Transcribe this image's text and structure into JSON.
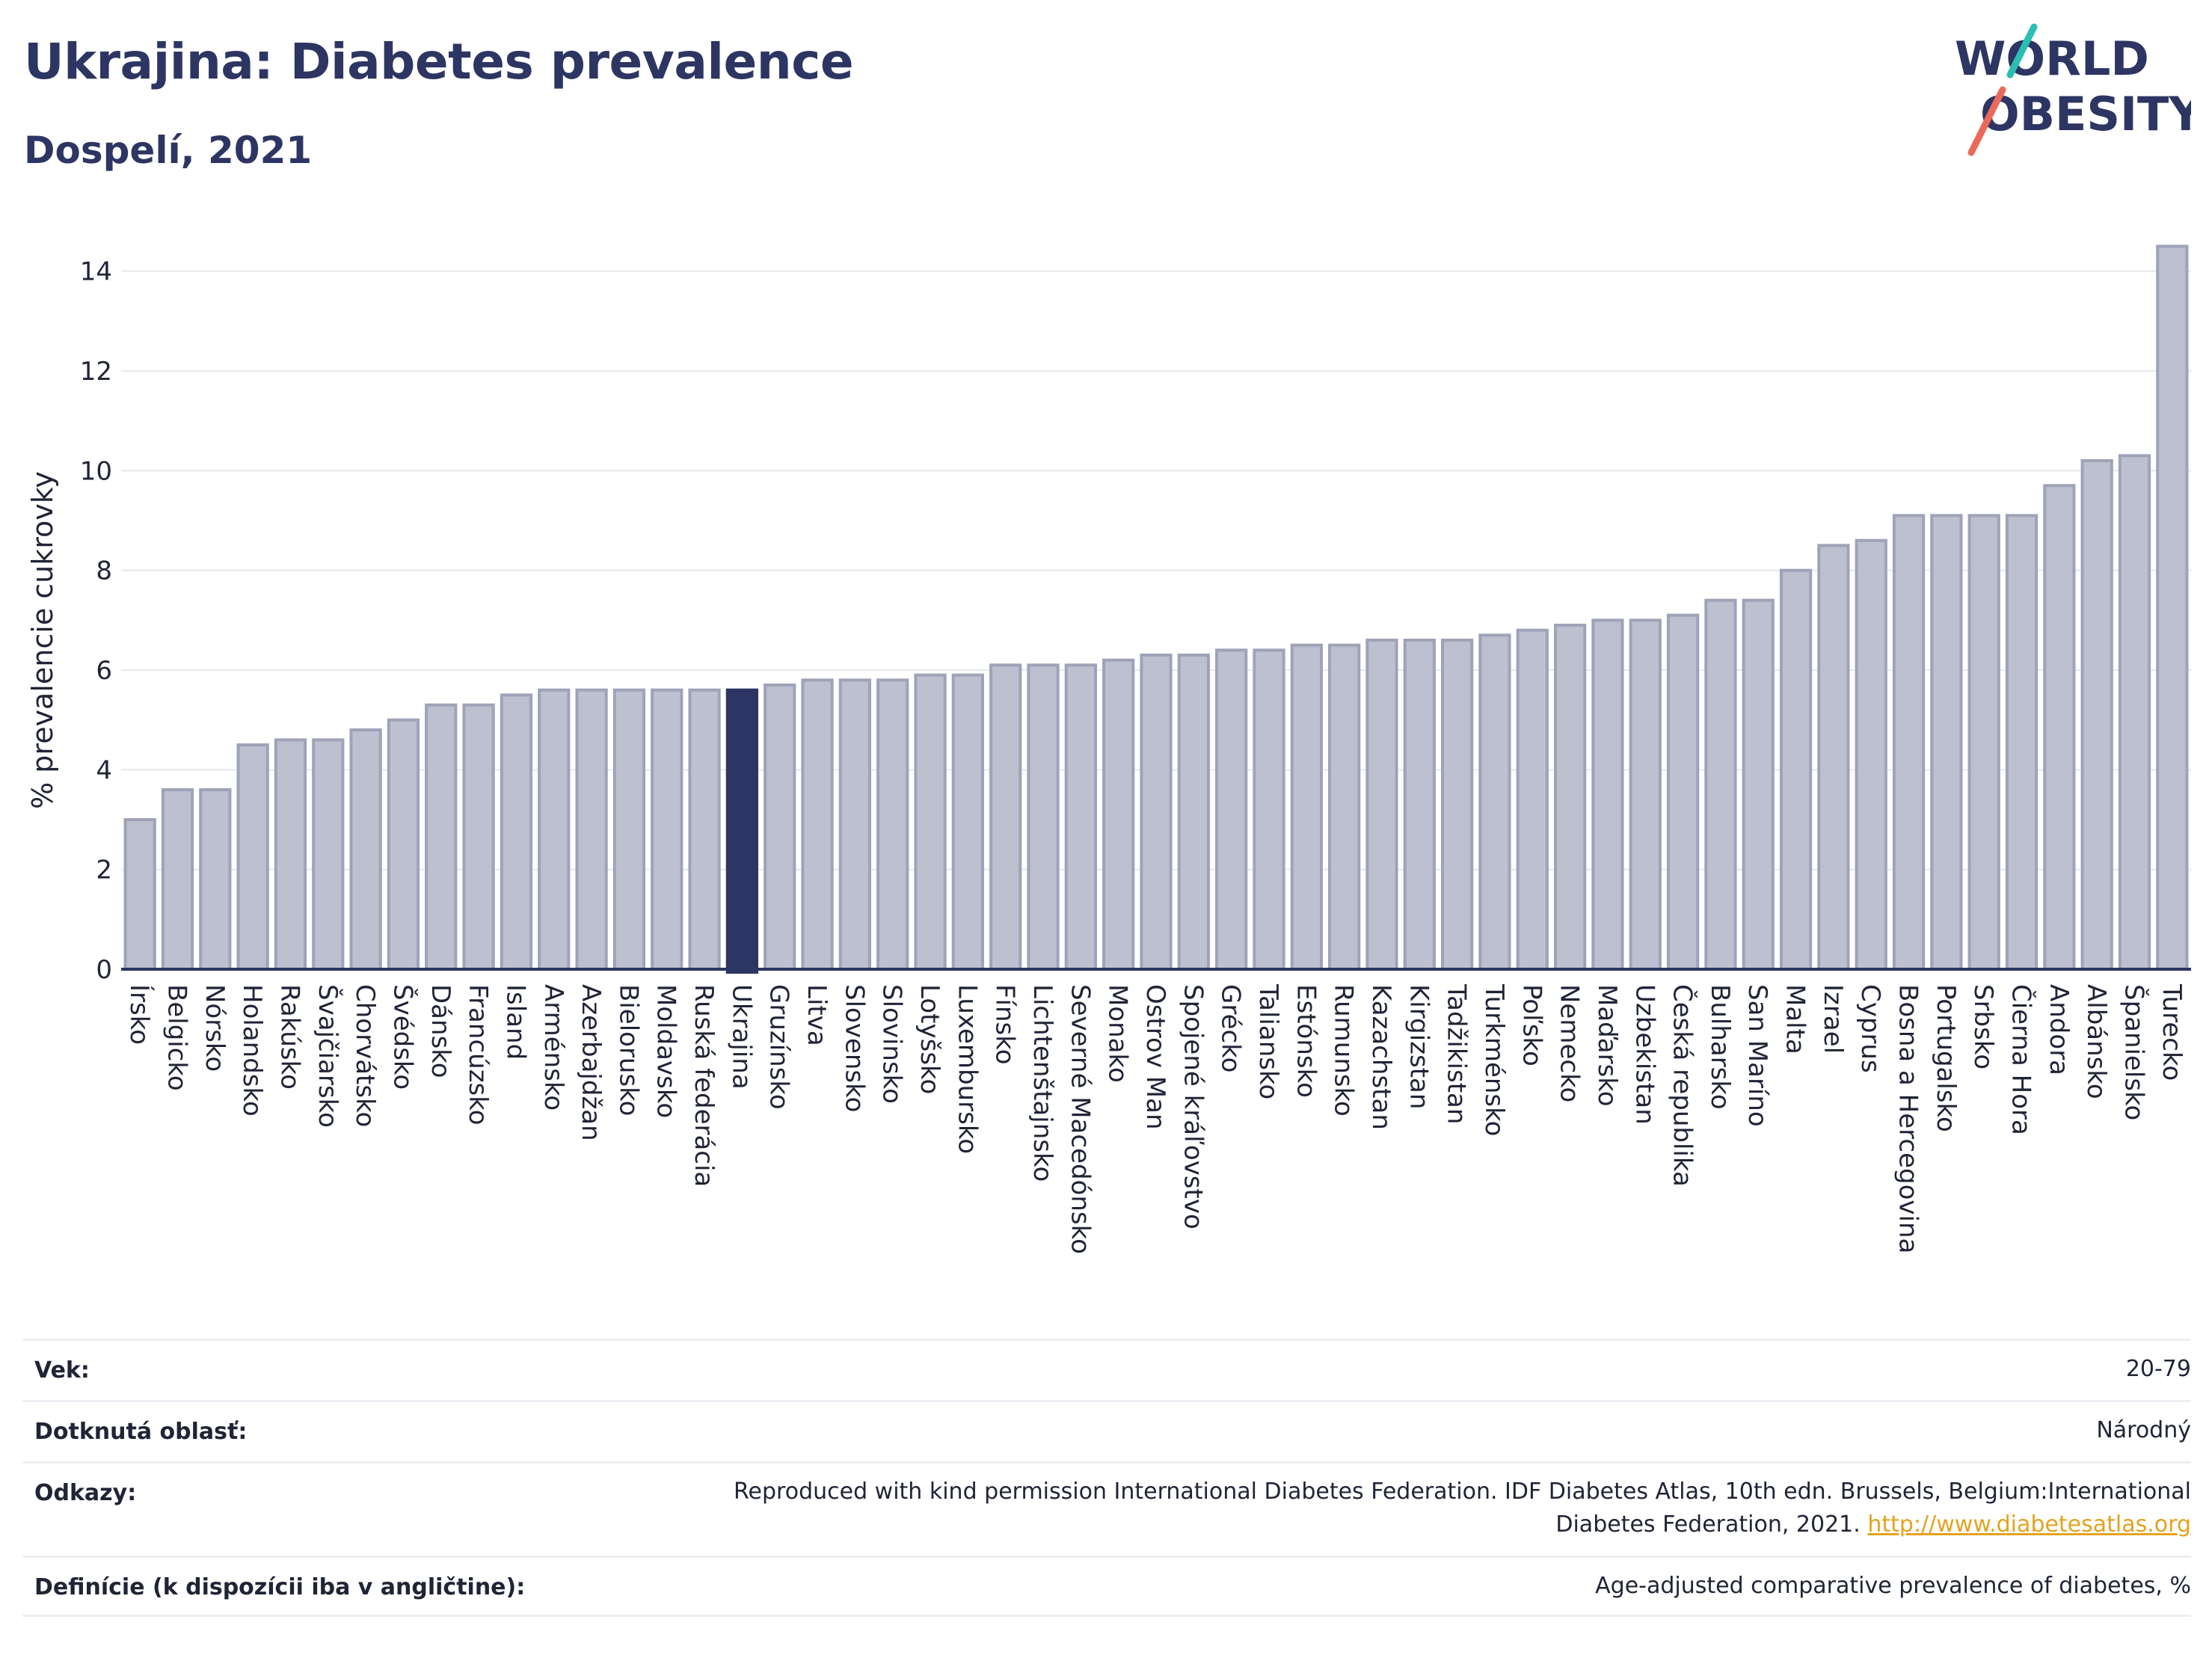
{
  "header": {
    "title": "Ukrajina: Diabetes prevalence",
    "subtitle": "Dospelí, 2021"
  },
  "logo": {
    "line1": "WORLD",
    "line2": "OBESITY",
    "colors": {
      "text": "#2d3563",
      "slash_teal": "#2bbfb3",
      "slash_coral": "#ea6a5a"
    }
  },
  "colors": {
    "bar_fill": "#bcc0cf",
    "bar_stroke": "#9ea3b8",
    "highlight_fill": "#2d3563",
    "axis_text": "#1f2436",
    "grid": "#e6e8ee"
  },
  "chart_data": {
    "type": "bar",
    "ylabel": "% prevalencie cukrovky",
    "ylim": [
      0,
      15
    ],
    "yticks": [
      0,
      2,
      4,
      6,
      8,
      10,
      12,
      14
    ],
    "grid": true,
    "highlight": "Ukrajina",
    "categories": [
      "Írsko",
      "Belgicko",
      "Nórsko",
      "Holandsko",
      "Rakúsko",
      "Švajčiarsko",
      "Chorvátsko",
      "Švédsko",
      "Dánsko",
      "Francúzsko",
      "Island",
      "Arménsko",
      "Azerbajdžan",
      "Bielorusko",
      "Moldavsko",
      "Ruská federácia",
      "Ukrajina",
      "Gruzínsko",
      "Litva",
      "Slovensko",
      "Slovinsko",
      "Lotyšsko",
      "Luxembursko",
      "Fínsko",
      "Lichtenštajnsko",
      "Severné Macedónsko",
      "Monako",
      "Ostrov Man",
      "Spojené kráľovstvo",
      "Grécko",
      "Taliansko",
      "Estónsko",
      "Rumunsko",
      "Kazachstan",
      "Kirgizstan",
      "Tadžikistan",
      "Turkménsko",
      "Poľsko",
      "Nemecko",
      "Maďarsko",
      "Uzbekistan",
      "Česká republika",
      "Bulharsko",
      "San Maríno",
      "Malta",
      "Izrael",
      "Cyprus",
      "Bosna a Hercegovina",
      "Portugalsko",
      "Srbsko",
      "Čierna Hora",
      "Andora",
      "Albánsko",
      "Španielsko",
      "Turecko"
    ],
    "values": [
      3.0,
      3.6,
      3.6,
      4.5,
      4.6,
      4.6,
      4.8,
      5.0,
      5.3,
      5.3,
      5.5,
      5.6,
      5.6,
      5.6,
      5.6,
      5.6,
      5.6,
      5.7,
      5.8,
      5.8,
      5.8,
      5.9,
      5.9,
      6.1,
      6.1,
      6.1,
      6.2,
      6.3,
      6.3,
      6.4,
      6.4,
      6.5,
      6.5,
      6.6,
      6.6,
      6.6,
      6.7,
      6.8,
      6.9,
      7.0,
      7.0,
      7.1,
      7.4,
      7.4,
      8.0,
      8.5,
      8.6,
      9.1,
      9.1,
      9.1,
      9.1,
      9.7,
      10.2,
      10.3,
      14.5
    ]
  },
  "meta": {
    "rows": [
      {
        "label": "Vek:",
        "value": "20-79"
      },
      {
        "label": "Dotknutá oblasť:",
        "value": "Národný"
      },
      {
        "label": "Odkazy:",
        "value_line1": "Reproduced with kind permission International Diabetes Federation.  IDF Diabetes Atlas, 10th edn. Brussels, Belgium:International",
        "value_line2": "Diabetes Federation, 2021.",
        "link": "http://www.diabetesatlas.org"
      },
      {
        "label": "Definície (k dispozícii iba v angličtine):",
        "value": "Age-adjusted comparative prevalence of diabetes, %"
      }
    ]
  }
}
